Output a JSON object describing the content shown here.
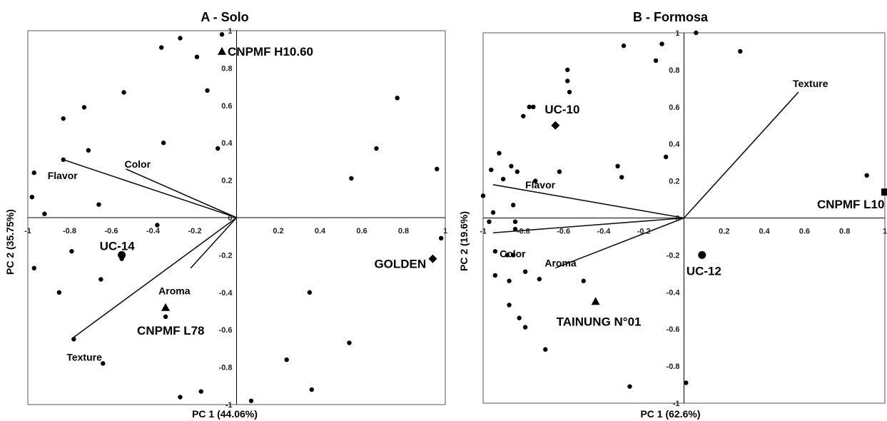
{
  "chart_data": [
    {
      "type": "scatter",
      "title": "A - Solo",
      "xlabel": "PC 1 (44.06%)",
      "ylabel": "PC 2 (35.75%)",
      "xlim": [
        -1,
        1
      ],
      "ylim": [
        -1,
        1
      ],
      "grid": false,
      "x_ticks": [
        "-1",
        "-0.8",
        "-0.6",
        "-0.4",
        "-0.2",
        "0",
        "0.2",
        "0.4",
        "0.6",
        "0.8",
        "1"
      ],
      "y_ticks": [
        "1",
        "0.8",
        "0.6",
        "0.4",
        "0.2",
        "0",
        "-0.2",
        "-0.4",
        "-0.6",
        "-0.8",
        "-1"
      ],
      "vectors": [
        {
          "name": "Flavor",
          "x": -0.83,
          "y": 0.31
        },
        {
          "name": "Color",
          "x": -0.53,
          "y": 0.26
        },
        {
          "name": "Aroma",
          "x": -0.22,
          "y": -0.27
        },
        {
          "name": "Texture",
          "x": -0.78,
          "y": -0.64
        }
      ],
      "cultivars": [
        {
          "name": "CNPMF H10.60",
          "x": -0.07,
          "y": 0.89,
          "marker": "triangle"
        },
        {
          "name": "UC-14",
          "x": -0.55,
          "y": -0.2,
          "marker": "circle"
        },
        {
          "name": "CNPMF L78",
          "x": -0.34,
          "y": -0.48,
          "marker": "triangle"
        },
        {
          "name": "GOLDEN",
          "x": 0.94,
          "y": -0.22,
          "marker": "diamond"
        }
      ],
      "points": [
        [
          -0.36,
          0.91
        ],
        [
          -0.27,
          0.96
        ],
        [
          -0.07,
          0.98
        ],
        [
          -0.19,
          0.86
        ],
        [
          -0.54,
          0.67
        ],
        [
          -0.14,
          0.68
        ],
        [
          -0.73,
          0.59
        ],
        [
          -0.83,
          0.53
        ],
        [
          -0.35,
          0.4
        ],
        [
          -0.09,
          0.37
        ],
        [
          -0.71,
          0.36
        ],
        [
          -0.83,
          0.31
        ],
        [
          -0.97,
          0.24
        ],
        [
          -0.98,
          0.11
        ],
        [
          -0.92,
          0.02
        ],
        [
          -0.66,
          0.07
        ],
        [
          -0.38,
          -0.04
        ],
        [
          -0.79,
          -0.18
        ],
        [
          -0.55,
          -0.22
        ],
        [
          -0.65,
          -0.33
        ],
        [
          -0.97,
          -0.27
        ],
        [
          -0.85,
          -0.4
        ],
        [
          -0.34,
          -0.53
        ],
        [
          -0.78,
          -0.65
        ],
        [
          -0.64,
          -0.78
        ],
        [
          -0.27,
          -0.96
        ],
        [
          -0.17,
          -0.93
        ],
        [
          0.07,
          -0.98
        ],
        [
          0.24,
          -0.76
        ],
        [
          0.36,
          -0.92
        ],
        [
          0.35,
          -0.4
        ],
        [
          0.54,
          -0.67
        ],
        [
          0.55,
          0.21
        ],
        [
          0.67,
          0.37
        ],
        [
          0.77,
          0.64
        ],
        [
          0.96,
          0.26
        ],
        [
          0.98,
          -0.11
        ]
      ]
    },
    {
      "type": "scatter",
      "title": "B - Formosa",
      "xlabel": "PC 1 (62.6%)",
      "ylabel": "PC 2 (19.6%)",
      "xlim": [
        -1,
        1
      ],
      "ylim": [
        -1,
        1
      ],
      "grid": false,
      "x_ticks": [
        "-1",
        "-0.8",
        "-0.6",
        "-0.4",
        "-0.2",
        "0",
        "0.2",
        "0.4",
        "0.6",
        "0.8",
        "1"
      ],
      "y_ticks": [
        "1",
        "0.8",
        "0.6",
        "0.4",
        "0.2",
        "0",
        "-0.2",
        "-0.4",
        "-0.6",
        "-0.8",
        "-1"
      ],
      "vectors": [
        {
          "name": "Texture",
          "x": 0.57,
          "y": 0.68
        },
        {
          "name": "Flavor",
          "x": -0.95,
          "y": 0.18
        },
        {
          "name": "Color",
          "x": -0.95,
          "y": -0.08
        },
        {
          "name": "Aroma",
          "x": -0.64,
          "y": -0.27
        }
      ],
      "cultivars": [
        {
          "name": "UC-10",
          "x": -0.64,
          "y": 0.5,
          "marker": "diamond"
        },
        {
          "name": "CNPMF L10",
          "x": 1.0,
          "y": 0.14,
          "marker": "square"
        },
        {
          "name": "UC-12",
          "x": 0.09,
          "y": -0.2,
          "marker": "circle"
        },
        {
          "name": "TAINUNG N°01",
          "x": -0.44,
          "y": -0.45,
          "marker": "triangle"
        }
      ],
      "points": [
        [
          -0.3,
          0.93
        ],
        [
          -0.11,
          0.94
        ],
        [
          0.06,
          1.0
        ],
        [
          0.28,
          0.9
        ],
        [
          -0.14,
          0.85
        ],
        [
          -0.58,
          0.8
        ],
        [
          -0.58,
          0.74
        ],
        [
          -0.57,
          0.68
        ],
        [
          -0.77,
          0.6
        ],
        [
          -0.75,
          0.6
        ],
        [
          -0.8,
          0.55
        ],
        [
          -0.92,
          0.35
        ],
        [
          -0.96,
          0.26
        ],
        [
          -0.86,
          0.28
        ],
        [
          -0.83,
          0.25
        ],
        [
          -0.9,
          0.21
        ],
        [
          -0.74,
          0.2
        ],
        [
          -0.62,
          0.25
        ],
        [
          -0.33,
          0.28
        ],
        [
          -0.31,
          0.22
        ],
        [
          -0.09,
          0.33
        ],
        [
          -1.0,
          0.12
        ],
        [
          -0.95,
          0.03
        ],
        [
          -0.97,
          -0.02
        ],
        [
          -0.85,
          0.07
        ],
        [
          -0.84,
          -0.02
        ],
        [
          -0.84,
          -0.06
        ],
        [
          -0.94,
          -0.18
        ],
        [
          -0.88,
          -0.2
        ],
        [
          -0.85,
          -0.2
        ],
        [
          -0.94,
          -0.31
        ],
        [
          -0.87,
          -0.34
        ],
        [
          -0.79,
          -0.29
        ],
        [
          -0.72,
          -0.33
        ],
        [
          -0.5,
          -0.34
        ],
        [
          -0.87,
          -0.47
        ],
        [
          -0.82,
          -0.54
        ],
        [
          -0.79,
          -0.59
        ],
        [
          -0.69,
          -0.71
        ],
        [
          -0.27,
          -0.91
        ],
        [
          0.01,
          -0.89
        ],
        [
          0.91,
          0.23
        ]
      ]
    }
  ]
}
